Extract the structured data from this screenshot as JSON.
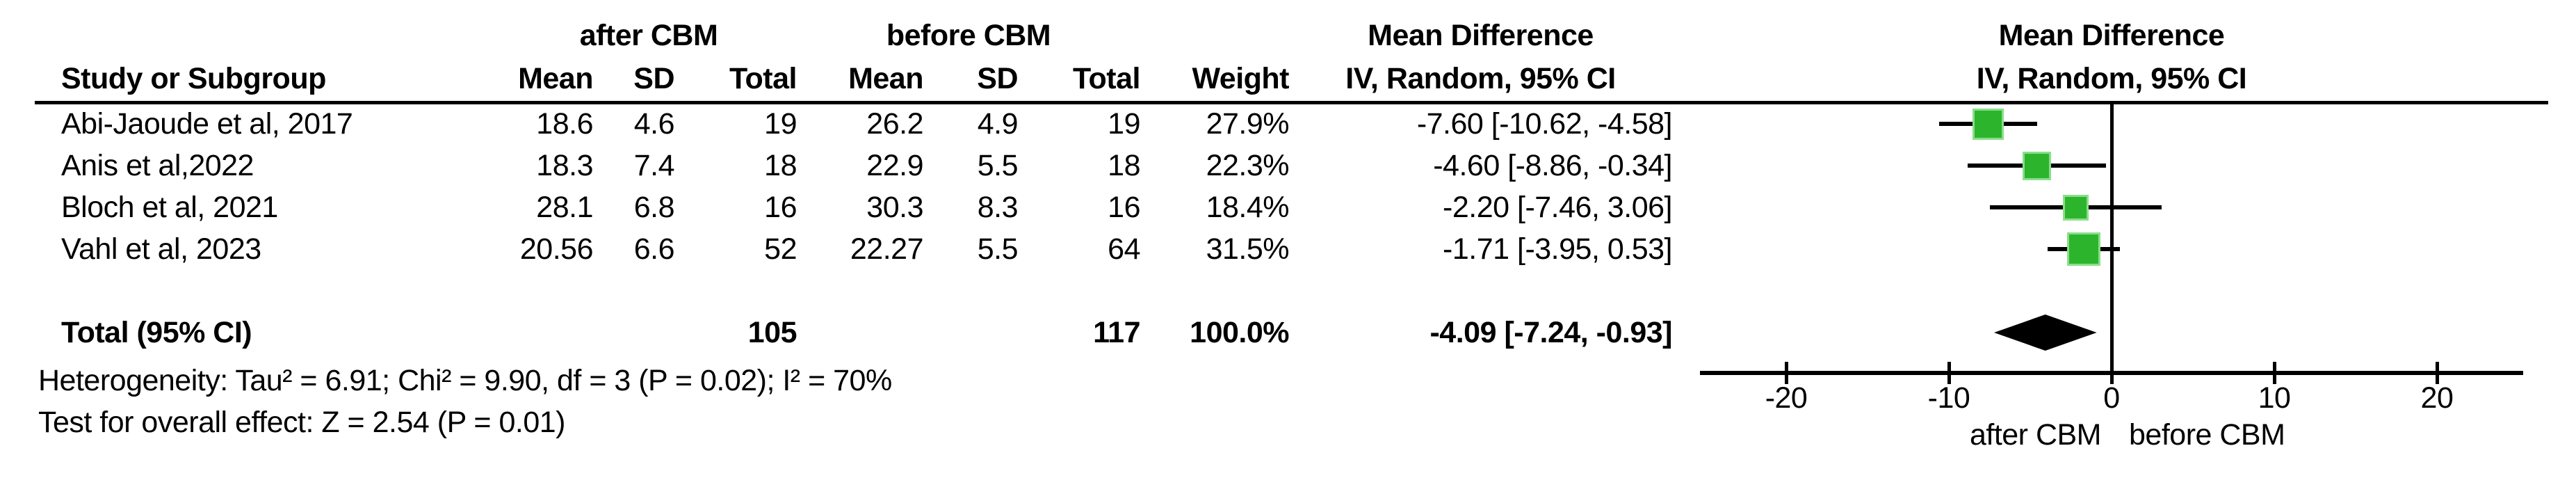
{
  "table": {
    "group1_label": "after CBM",
    "group2_label": "before CBM",
    "effect_header_line1": "Mean Difference",
    "effect_header_line2": "IV, Random, 95% CI",
    "col_headers": {
      "study": "Study or Subgroup",
      "mean": "Mean",
      "sd": "SD",
      "total": "Total",
      "weight": "Weight",
      "ci": "IV, Random, 95% CI"
    },
    "rows": [
      {
        "study": "Abi-Jaoude et al, 2017",
        "after_mean": "18.6",
        "after_sd": "4.6",
        "after_total": "19",
        "before_mean": "26.2",
        "before_sd": "4.9",
        "before_total": "19",
        "weight": "27.9%",
        "ci": "-7.60 [-10.62, -4.58]"
      },
      {
        "study": "Anis et al,2022",
        "after_mean": "18.3",
        "after_sd": "7.4",
        "after_total": "18",
        "before_mean": "22.9",
        "before_sd": "5.5",
        "before_total": "18",
        "weight": "22.3%",
        "ci": "-4.60 [-8.86, -0.34]"
      },
      {
        "study": "Bloch et al, 2021",
        "after_mean": "28.1",
        "after_sd": "6.8",
        "after_total": "16",
        "before_mean": "30.3",
        "before_sd": "8.3",
        "before_total": "16",
        "weight": "18.4%",
        "ci": "-2.20 [-7.46, 3.06]"
      },
      {
        "study": "Vahl et al, 2023",
        "after_mean": "20.56",
        "after_sd": "6.6",
        "after_total": "52",
        "before_mean": "22.27",
        "before_sd": "5.5",
        "before_total": "64",
        "weight": "31.5%",
        "ci": "-1.71 [-3.95, 0.53]"
      }
    ],
    "total_row": {
      "label": "Total (95% CI)",
      "after_total": "105",
      "before_total": "117",
      "weight": "100.0%",
      "ci": "-4.09 [-7.24, -0.93]"
    },
    "footer": [
      "Heterogeneity: Tau² = 6.91; Chi² = 9.90, df = 3 (P = 0.02); I² = 70%",
      "Test for overall effect: Z = 2.54 (P = 0.01)"
    ]
  },
  "plot": {
    "header_line1": "Mean Difference",
    "header_line2": "IV, Random, 95% CI",
    "xlabel_left": "after CBM",
    "xlabel_right": "before CBM",
    "marker_color": "#2cb52c",
    "marker_border_color": "#8ade8a",
    "line_color": "#000000"
  },
  "chart_data": {
    "type": "forest",
    "title": "Mean Difference IV, Random, 95% CI — after CBM vs before CBM",
    "studies": [
      {
        "name": "Abi-Jaoude et al, 2017",
        "mean_after": 18.6,
        "sd_after": 4.6,
        "n_after": 19,
        "mean_before": 26.2,
        "sd_before": 4.9,
        "n_before": 19,
        "weight_pct": 27.9,
        "md": -7.6,
        "ci_low": -10.62,
        "ci_high": -4.58
      },
      {
        "name": "Anis et al,2022",
        "mean_after": 18.3,
        "sd_after": 7.4,
        "n_after": 18,
        "mean_before": 22.9,
        "sd_before": 5.5,
        "n_before": 18,
        "weight_pct": 22.3,
        "md": -4.6,
        "ci_low": -8.86,
        "ci_high": -0.34
      },
      {
        "name": "Bloch et al, 2021",
        "mean_after": 28.1,
        "sd_after": 6.8,
        "n_after": 16,
        "mean_before": 30.3,
        "sd_before": 8.3,
        "n_before": 16,
        "weight_pct": 18.4,
        "md": -2.2,
        "ci_low": -7.46,
        "ci_high": 3.06
      },
      {
        "name": "Vahl et al, 2023",
        "mean_after": 20.56,
        "sd_after": 6.6,
        "n_after": 52,
        "mean_before": 22.27,
        "sd_before": 5.5,
        "n_before": 64,
        "weight_pct": 31.5,
        "md": -1.71,
        "ci_low": -3.95,
        "ci_high": 0.53
      }
    ],
    "total": {
      "n_after": 105,
      "n_before": 117,
      "weight_pct": 100.0,
      "md": -4.09,
      "ci_low": -7.24,
      "ci_high": -0.93
    },
    "heterogeneity": {
      "tau2": 6.91,
      "chi2": 9.9,
      "df": 3,
      "p": 0.02,
      "i2_pct": 70
    },
    "overall_effect": {
      "z": 2.54,
      "p": 0.01
    },
    "xaxis": {
      "ticks": [
        -20,
        -10,
        0,
        10,
        20
      ],
      "range": [
        -25.3,
        25.3
      ],
      "label_left": "after CBM",
      "label_right": "before CBM",
      "grid": false
    }
  }
}
